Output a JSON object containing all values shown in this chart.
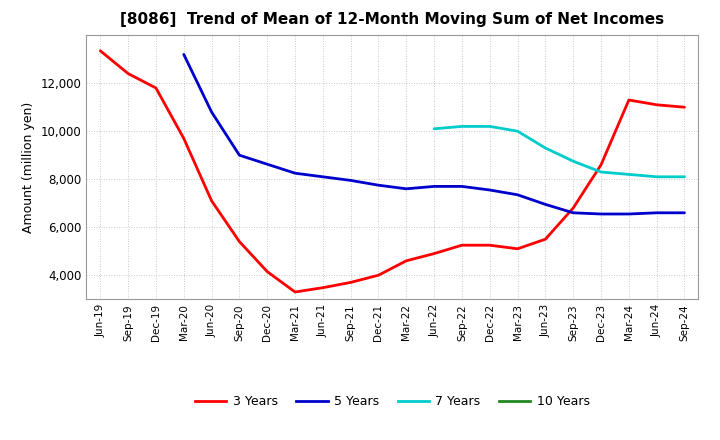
{
  "title": "[8086]  Trend of Mean of 12-Month Moving Sum of Net Incomes",
  "ylabel": "Amount (million yen)",
  "background_color": "#ffffff",
  "grid_color": "#bbbbbb",
  "x_labels": [
    "Jun-19",
    "Sep-19",
    "Dec-19",
    "Mar-20",
    "Jun-20",
    "Sep-20",
    "Dec-20",
    "Mar-21",
    "Jun-21",
    "Sep-21",
    "Dec-21",
    "Mar-22",
    "Jun-22",
    "Sep-22",
    "Dec-22",
    "Mar-23",
    "Jun-23",
    "Sep-23",
    "Dec-23",
    "Mar-24",
    "Jun-24",
    "Sep-24"
  ],
  "ylim": [
    3000,
    14000
  ],
  "yticks": [
    4000,
    6000,
    8000,
    10000,
    12000
  ],
  "series": {
    "3 Years": {
      "color": "#ff0000",
      "values": [
        13350,
        12400,
        11800,
        9700,
        7100,
        5400,
        4150,
        3300,
        3480,
        3700,
        4000,
        4600,
        4900,
        5250,
        5250,
        5100,
        5500,
        6800,
        8600,
        11300,
        11100,
        11000
      ]
    },
    "5 Years": {
      "color": "#0000cc",
      "values": [
        null,
        null,
        null,
        13200,
        10800,
        9000,
        null,
        8250,
        8100,
        7950,
        7750,
        7600,
        7700,
        7700,
        7550,
        7350,
        6950,
        6600,
        6550,
        6550,
        6600,
        6600
      ]
    },
    "7 Years": {
      "color": "#00cccc",
      "values": [
        null,
        null,
        null,
        null,
        null,
        null,
        null,
        null,
        null,
        null,
        null,
        null,
        10100,
        10200,
        10200,
        10000,
        9300,
        8750,
        8300,
        8200,
        8100,
        8100
      ]
    },
    "10 Years": {
      "color": "#228822",
      "values": [
        null,
        null,
        null,
        null,
        null,
        null,
        null,
        null,
        null,
        null,
        null,
        null,
        null,
        null,
        null,
        null,
        null,
        null,
        null,
        null,
        null,
        null
      ]
    }
  },
  "legend_labels": [
    "3 Years",
    "5 Years",
    "7 Years",
    "10 Years"
  ],
  "legend_colors": [
    "#ff0000",
    "#0000cc",
    "#00cccc",
    "#228822"
  ]
}
